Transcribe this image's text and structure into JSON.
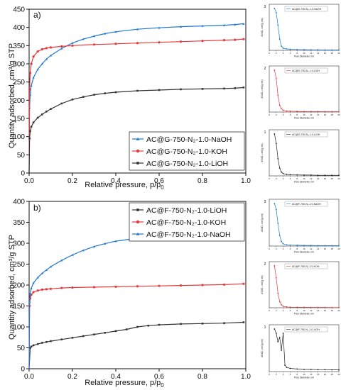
{
  "figure": "Nitrogen adsorption isotherms with pore size distribution insets",
  "chart_data": [
    {
      "id": "a-main",
      "type": "line",
      "panel_label": "a)",
      "xlabel_main": "Relative pressure, p/p",
      "xlabel_sub": "0",
      "ylabel": "Quantity adsorbed, cm³/g STP",
      "xlim": [
        0,
        1.0
      ],
      "ylim": [
        0,
        450
      ],
      "x_ticks": [
        "0.0",
        "0.2",
        "0.4",
        "0.6",
        "0.8",
        "1.0"
      ],
      "y_ticks": [
        "0",
        "50",
        "100",
        "150",
        "200",
        "250",
        "300",
        "350",
        "400",
        "450"
      ],
      "legend_position": "bottom-right",
      "series": [
        {
          "name": "AC@G-750-N₂-1.0-NaOH",
          "color": "#1f77d4",
          "marker": "triangle",
          "x": [
            0,
            0.002,
            0.005,
            0.01,
            0.02,
            0.04,
            0.06,
            0.08,
            0.1,
            0.15,
            0.2,
            0.25,
            0.3,
            0.35,
            0.4,
            0.5,
            0.6,
            0.7,
            0.8,
            0.9,
            0.95,
            0.99
          ],
          "y": [
            0,
            180,
            215,
            240,
            262,
            285,
            300,
            313,
            323,
            342,
            357,
            368,
            376,
            383,
            388,
            395,
            399,
            402,
            404,
            406,
            408,
            410
          ]
        },
        {
          "name": "AC@G-750-N₂-1.0-KOH",
          "color": "#e8383b",
          "marker": "circle",
          "x": [
            0,
            0.002,
            0.005,
            0.01,
            0.02,
            0.04,
            0.06,
            0.08,
            0.1,
            0.15,
            0.2,
            0.3,
            0.4,
            0.5,
            0.6,
            0.7,
            0.8,
            0.9,
            0.95,
            0.99
          ],
          "y": [
            0,
            230,
            275,
            300,
            320,
            334,
            340,
            343,
            345,
            348,
            350,
            353,
            355,
            357,
            359,
            361,
            363,
            365,
            366,
            368
          ]
        },
        {
          "name": "AC@G-750-N₂-1.0-LiOH",
          "color": "#333333",
          "marker": "square",
          "x": [
            0,
            0.002,
            0.005,
            0.01,
            0.02,
            0.04,
            0.06,
            0.08,
            0.1,
            0.15,
            0.2,
            0.25,
            0.3,
            0.35,
            0.4,
            0.5,
            0.6,
            0.7,
            0.8,
            0.9,
            0.95,
            0.99
          ],
          "y": [
            0,
            95,
            115,
            127,
            139,
            152,
            161,
            169,
            176,
            191,
            202,
            209,
            215,
            219,
            222,
            226,
            228,
            230,
            231,
            232,
            233,
            235
          ]
        }
      ]
    },
    {
      "id": "b-main",
      "type": "line",
      "panel_label": "b)",
      "xlabel_main": "Relative pressure, p/p",
      "xlabel_sub": "0",
      "ylabel": "Quantity adsorbed, cm³/g STP",
      "xlim": [
        0,
        1.0
      ],
      "ylim": [
        0,
        400
      ],
      "x_ticks": [
        "0.0",
        "0.2",
        "0.4",
        "0.6",
        "0.8",
        "1.0"
      ],
      "y_ticks": [
        "0",
        "50",
        "100",
        "150",
        "200",
        "250",
        "300",
        "350",
        "400"
      ],
      "legend_position": "top-right",
      "series": [
        {
          "name": "AC@F-750-N₂-1.0-LiOH",
          "color": "#333333",
          "marker": "square",
          "x": [
            0,
            0.005,
            0.01,
            0.02,
            0.04,
            0.06,
            0.08,
            0.1,
            0.15,
            0.2,
            0.25,
            0.3,
            0.35,
            0.4,
            0.45,
            0.5,
            0.55,
            0.6,
            0.7,
            0.8,
            0.9,
            0.99
          ],
          "y": [
            0,
            50,
            53,
            56,
            59,
            62,
            64,
            66,
            70,
            74,
            78,
            82,
            86,
            90,
            94,
            100,
            103,
            105,
            107,
            108,
            109,
            111
          ]
        },
        {
          "name": "AC@F-750-N₂-1.0-KOH",
          "color": "#e8383b",
          "marker": "circle",
          "x": [
            0,
            0.002,
            0.005,
            0.01,
            0.02,
            0.04,
            0.06,
            0.08,
            0.1,
            0.15,
            0.2,
            0.3,
            0.4,
            0.5,
            0.6,
            0.7,
            0.8,
            0.9,
            0.99
          ],
          "y": [
            0,
            150,
            168,
            177,
            183,
            187,
            189,
            190,
            191,
            193,
            194,
            195,
            196,
            197,
            198,
            199,
            200,
            201,
            203
          ]
        },
        {
          "name": "AC@F-750-N₂-1.0-NaOH",
          "color": "#1f77d4",
          "marker": "triangle",
          "x": [
            0,
            0.002,
            0.005,
            0.01,
            0.02,
            0.04,
            0.06,
            0.08,
            0.1,
            0.15,
            0.2,
            0.25,
            0.3,
            0.35,
            0.4,
            0.5,
            0.6,
            0.7,
            0.8,
            0.9,
            0.99
          ],
          "y": [
            0,
            160,
            180,
            192,
            205,
            218,
            228,
            236,
            244,
            259,
            272,
            283,
            292,
            299,
            305,
            312,
            316,
            319,
            322,
            324,
            327
          ]
        }
      ]
    },
    {
      "id": "inset-a3",
      "type": "line",
      "index": "3",
      "legend": "AC@G-750-N₂-1.0-NaOH",
      "color": "#1f77d4",
      "xlabel": "Pore Diameter, nm",
      "ylabel": "dV/dD, cm³/(g nm)",
      "x_ticks": [
        "0",
        "2",
        "4",
        "6",
        "8",
        "10",
        "12",
        "14",
        "16",
        "18",
        "20"
      ],
      "x": [
        1.5,
        2,
        2.5,
        3,
        3.5,
        4,
        5,
        6,
        8,
        10,
        12,
        14,
        16,
        18,
        20
      ],
      "y": [
        0.3,
        0.27,
        0.18,
        0.08,
        0.03,
        0.015,
        0.01,
        0.008,
        0.006,
        0.005,
        0.004,
        0.004,
        0.003,
        0.003,
        0.003
      ]
    },
    {
      "id": "inset-a2",
      "type": "line",
      "index": "2",
      "legend": "AC@G-750-N₂-1.0-KOH",
      "color": "#e8383b",
      "xlabel": "Pore Diameter, nm",
      "ylabel": "dV/dD, cm³/(g nm)",
      "x_ticks": [
        "0",
        "2",
        "4",
        "6",
        "8",
        "10",
        "12",
        "14",
        "16",
        "18",
        "20"
      ],
      "x": [
        1.5,
        2,
        2.5,
        3,
        3.5,
        4,
        5,
        6,
        8,
        10,
        12,
        14,
        16,
        18,
        20
      ],
      "y": [
        0.25,
        0.2,
        0.1,
        0.04,
        0.02,
        0.01,
        0.006,
        0.005,
        0.004,
        0.003,
        0.003,
        0.003,
        0.002,
        0.002,
        0.002
      ]
    },
    {
      "id": "inset-a1",
      "type": "line",
      "index": "1",
      "legend": "AC@G-750-N₂-1.0-LiOH",
      "color": "#222222",
      "xlabel": "Pore Diameter, nm",
      "ylabel": "dV/dD, cm³/(g nm)",
      "x_ticks": [
        "0",
        "2",
        "4",
        "6",
        "8",
        "10",
        "12",
        "14",
        "16",
        "18",
        "20"
      ],
      "x": [
        1.5,
        2,
        2.5,
        3,
        3.5,
        4,
        5,
        6,
        8,
        10,
        12,
        14,
        16,
        18,
        20
      ],
      "y": [
        0.22,
        0.17,
        0.09,
        0.04,
        0.02,
        0.012,
        0.008,
        0.006,
        0.005,
        0.004,
        0.004,
        0.003,
        0.003,
        0.003,
        0.003
      ]
    },
    {
      "id": "inset-b3",
      "type": "line",
      "index": "3",
      "legend": "AC@F-750-N₂-1.0-NaOH",
      "color": "#1f77d4",
      "xlabel": "Pore Diameter, nm",
      "ylabel": "dV/dD, cm³/(g nm)",
      "x_ticks": [
        "0",
        "2",
        "4",
        "6",
        "8",
        "10",
        "12",
        "14",
        "16",
        "18",
        "20"
      ],
      "x": [
        1.5,
        2,
        2.5,
        3,
        3.5,
        4,
        5,
        6,
        8,
        10,
        12,
        14,
        16,
        18,
        20
      ],
      "y": [
        0.28,
        0.24,
        0.15,
        0.07,
        0.03,
        0.015,
        0.008,
        0.006,
        0.005,
        0.004,
        0.004,
        0.003,
        0.003,
        0.003,
        0.003
      ]
    },
    {
      "id": "inset-b2",
      "type": "line",
      "index": "2",
      "legend": "AC@F-750-N₂-1.0-KOH",
      "color": "#e8383b",
      "xlabel": "Pore Diameter, nm",
      "ylabel": "dV/dD, cm³/(g nm)",
      "x_ticks": [
        "0",
        "2",
        "4",
        "6",
        "8",
        "10",
        "12",
        "14",
        "16",
        "18",
        "20"
      ],
      "x": [
        1.5,
        2,
        2.5,
        3,
        3.5,
        4,
        5,
        6,
        8,
        10,
        12,
        14,
        16,
        18,
        20
      ],
      "y": [
        0.35,
        0.25,
        0.12,
        0.05,
        0.025,
        0.012,
        0.007,
        0.005,
        0.004,
        0.004,
        0.003,
        0.003,
        0.003,
        0.002,
        0.002
      ]
    },
    {
      "id": "inset-b1",
      "type": "line",
      "index": "1",
      "legend": "AC@F-750-N₂-1.0-LiOH",
      "color": "#222222",
      "xlabel": "Pore Diameter, nm",
      "ylabel": "dV/dD, cm³/(g nm)",
      "x_ticks": [
        "0",
        "2",
        "4",
        "6",
        "8",
        "10",
        "12",
        "14",
        "16",
        "18",
        "20"
      ],
      "x": [
        1.5,
        2,
        2.5,
        3,
        3.5,
        4,
        4.5,
        5,
        6,
        8,
        10,
        12,
        14,
        16,
        18,
        20
      ],
      "y": [
        0.02,
        0.018,
        0.014,
        0.016,
        0.01,
        0.018,
        0.003,
        0.002,
        0.0015,
        0.0012,
        0.001,
        0.001,
        0.0009,
        0.0009,
        0.0008,
        0.0008
      ]
    }
  ]
}
